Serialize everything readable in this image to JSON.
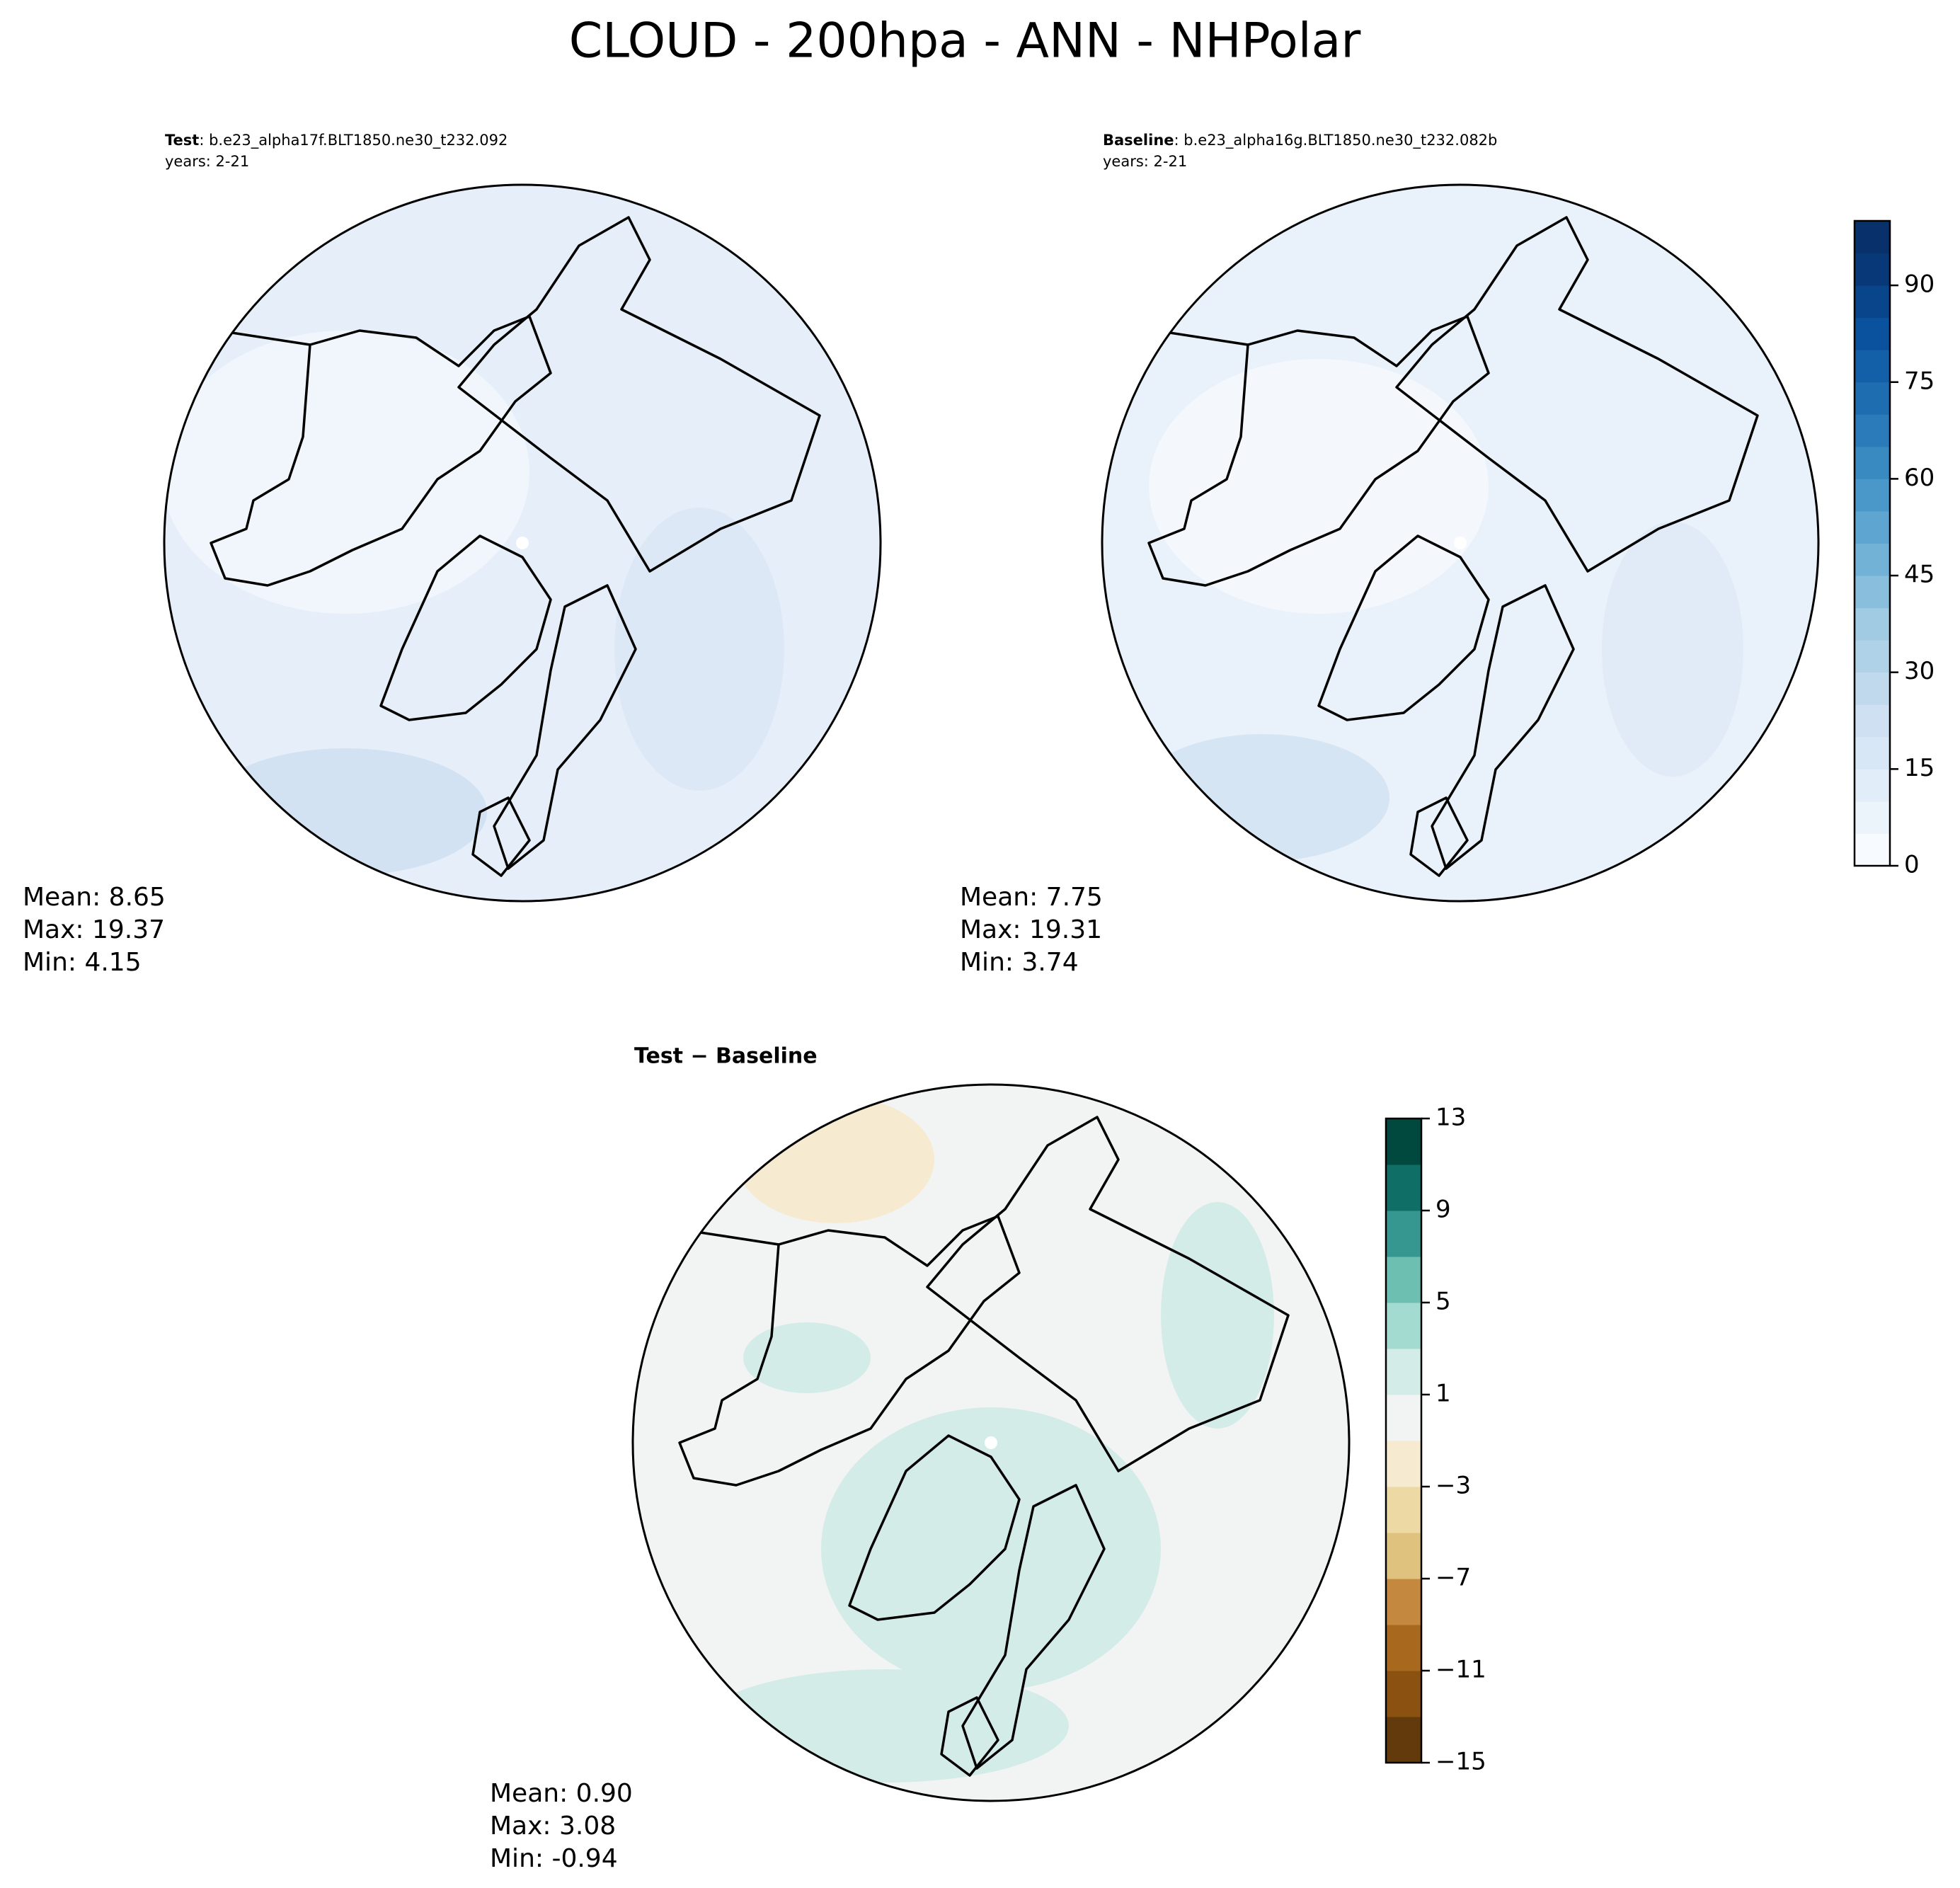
{
  "title": "CLOUD - 200hpa - ANN - NHPolar",
  "panels": [
    {
      "label": "Test",
      "case": ": b.e23_alpha17f.BLT1850.ne30_t232.092",
      "years": "years: 2-21",
      "stats": [
        "Mean:  8.65",
        "Max: 19.37",
        "Min:  4.15"
      ]
    },
    {
      "label": "Baseline",
      "case": ": b.e23_alpha16g.BLT1850.ne30_t232.082b",
      "years": "years: 2-21",
      "stats": [
        "Mean:  7.75",
        "Max: 19.31",
        "Min:  3.74"
      ]
    },
    {
      "label": "Test − Baseline",
      "stats": [
        "Mean:  0.90",
        "Max:  3.08",
        "Min: -0.94"
      ]
    }
  ],
  "colorbars": [
    {
      "lim": [
        0,
        100
      ],
      "ticks": [
        0,
        15,
        30,
        45,
        60,
        75,
        90
      ],
      "colors": [
        "#f7fbff",
        "#ebf3fb",
        "#e1edf8",
        "#d8e7f5",
        "#cee0f2",
        "#c1d9ed",
        "#b0d2e8",
        "#a0cbe2",
        "#89bedc",
        "#72b2d7",
        "#5ea5d1",
        "#4a98c9",
        "#3a8ac2",
        "#2b7bba",
        "#1f6db1",
        "#1460a8",
        "#0b529e",
        "#08458a",
        "#083877",
        "#08306b"
      ]
    },
    {
      "lim": [
        -15,
        13
      ],
      "ticks": [
        {
          "value": -15,
          "label": "−15"
        },
        {
          "value": -11,
          "label": "−11"
        },
        {
          "value": -7,
          "label": "−7"
        },
        {
          "value": -3,
          "label": "−3"
        },
        1,
        5,
        9,
        13
      ],
      "colors": [
        "#633a0c",
        "#8a5110",
        "#a8691f",
        "#c4893f",
        "#dfc27d",
        "#edd9a4",
        "#f6ead1",
        "#f2f4f3",
        "#d4ece8",
        "#a4dbd0",
        "#6cbfb1",
        "#35978f",
        "#0f6f67",
        "#01493e"
      ]
    }
  ]
}
